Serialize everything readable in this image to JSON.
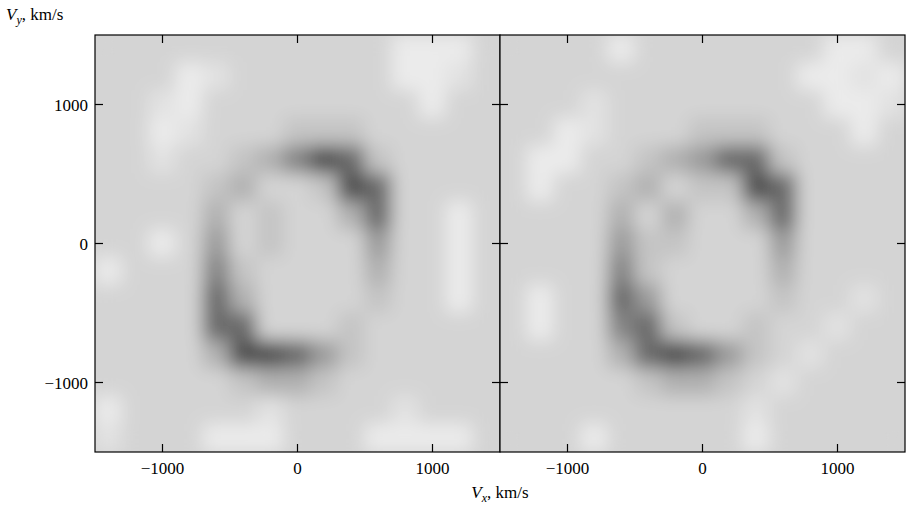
{
  "chart_data": [
    {
      "type": "heatmap",
      "xlabel": "Vx, km/s",
      "ylabel": "Vy, km/s",
      "xlim": [
        -1500,
        1500
      ],
      "ylim": [
        -1500,
        1500
      ],
      "xticks": [
        {
          "value": -1000,
          "label": "−1000"
        },
        0,
        1000
      ],
      "yticks": [
        {
          "value": -1000,
          "label": "−1000"
        },
        0,
        1000
      ],
      "zlim": [
        0,
        10
      ],
      "x": [
        -1400,
        -1200,
        -1000,
        -800,
        -600,
        -400,
        -200,
        0,
        200,
        400,
        600,
        800,
        1000,
        1200,
        1400
      ],
      "y": [
        1400,
        1200,
        1000,
        800,
        600,
        400,
        200,
        0,
        -200,
        -400,
        -600,
        -800,
        -1000,
        -1200,
        -1400
      ],
      "cells": [
        [
          3,
          3,
          3,
          3,
          3,
          3,
          3,
          3,
          3,
          3,
          3,
          1,
          1,
          1,
          3
        ],
        [
          3,
          3,
          3,
          1,
          2,
          3,
          3,
          3,
          3,
          3,
          3,
          1,
          1,
          2,
          3
        ],
        [
          3,
          3,
          2,
          1,
          3,
          3,
          3,
          3,
          3,
          3,
          3,
          3,
          1,
          3,
          3
        ],
        [
          3,
          3,
          1,
          2,
          3,
          3,
          3,
          4,
          4,
          4,
          3,
          3,
          3,
          3,
          3
        ],
        [
          3,
          3,
          2,
          3,
          3,
          4,
          5,
          7,
          9,
          8,
          4,
          3,
          3,
          3,
          3
        ],
        [
          3,
          3,
          3,
          3,
          4,
          5,
          3,
          3,
          4,
          9,
          8,
          3,
          3,
          3,
          3
        ],
        [
          3,
          3,
          3,
          3,
          5,
          3,
          4,
          3,
          3,
          5,
          8,
          3,
          3,
          1,
          3
        ],
        [
          3,
          3,
          1,
          3,
          6,
          3,
          4,
          3,
          3,
          3,
          6,
          3,
          3,
          1,
          3
        ],
        [
          1,
          3,
          3,
          3,
          7,
          4,
          3,
          3,
          3,
          3,
          5,
          3,
          3,
          1,
          3
        ],
        [
          3,
          3,
          3,
          3,
          8,
          5,
          3,
          3,
          3,
          3,
          4,
          3,
          3,
          1,
          3
        ],
        [
          3,
          3,
          3,
          3,
          8,
          8,
          3,
          3,
          3,
          4,
          3,
          3,
          3,
          3,
          3
        ],
        [
          3,
          3,
          3,
          3,
          5,
          9,
          9,
          8,
          6,
          4,
          3,
          3,
          3,
          3,
          3
        ],
        [
          3,
          3,
          3,
          3,
          3,
          4,
          5,
          5,
          4,
          3,
          3,
          3,
          3,
          3,
          3
        ],
        [
          1,
          3,
          3,
          3,
          3,
          3,
          2,
          3,
          3,
          3,
          3,
          2,
          3,
          3,
          3
        ],
        [
          2,
          3,
          3,
          3,
          1,
          1,
          1,
          3,
          3,
          3,
          1,
          1,
          1,
          1,
          3
        ]
      ]
    },
    {
      "type": "heatmap",
      "tick_labels": "x",
      "xlim": [
        -1500,
        1500
      ],
      "ylim": [
        -1500,
        1500
      ],
      "xticks": [
        {
          "value": -1000,
          "label": "−1000"
        },
        0,
        1000
      ],
      "yticks": [
        -1000,
        0,
        1000
      ],
      "zlim": [
        0,
        10
      ],
      "x": [
        -1400,
        -1200,
        -1000,
        -800,
        -600,
        -400,
        -200,
        0,
        200,
        400,
        600,
        800,
        1000,
        1200,
        1400
      ],
      "y": [
        1400,
        1200,
        1000,
        800,
        600,
        400,
        200,
        0,
        -200,
        -400,
        -600,
        -800,
        -1000,
        -1200,
        -1400
      ],
      "cells": [
        [
          3,
          3,
          3,
          3,
          1,
          3,
          3,
          3,
          3,
          3,
          3,
          3,
          1,
          1,
          3
        ],
        [
          3,
          3,
          3,
          3,
          3,
          3,
          3,
          3,
          3,
          3,
          3,
          1,
          1,
          2,
          1
        ],
        [
          3,
          3,
          3,
          2,
          3,
          3,
          3,
          3,
          3,
          3,
          3,
          3,
          1,
          1,
          2
        ],
        [
          3,
          3,
          1,
          2,
          3,
          3,
          3,
          4,
          4,
          4,
          3,
          3,
          3,
          1,
          3
        ],
        [
          3,
          1,
          1,
          3,
          3,
          4,
          5,
          6,
          8,
          8,
          4,
          3,
          3,
          3,
          3
        ],
        [
          3,
          1,
          3,
          3,
          4,
          5,
          3,
          4,
          4,
          9,
          8,
          3,
          3,
          3,
          3
        ],
        [
          3,
          3,
          3,
          3,
          5,
          3,
          5,
          3,
          3,
          5,
          8,
          3,
          3,
          3,
          3
        ],
        [
          3,
          3,
          3,
          3,
          6,
          4,
          4,
          3,
          3,
          3,
          6,
          3,
          3,
          3,
          3
        ],
        [
          3,
          3,
          3,
          3,
          7,
          4,
          3,
          3,
          3,
          3,
          5,
          3,
          3,
          3,
          3
        ],
        [
          3,
          1,
          3,
          3,
          8,
          6,
          3,
          3,
          3,
          3,
          4,
          3,
          3,
          2,
          3
        ],
        [
          3,
          1,
          3,
          3,
          7,
          8,
          4,
          3,
          3,
          4,
          3,
          3,
          2,
          3,
          3
        ],
        [
          3,
          3,
          3,
          3,
          5,
          8,
          9,
          8,
          6,
          4,
          3,
          2,
          3,
          3,
          3
        ],
        [
          3,
          3,
          3,
          3,
          3,
          4,
          5,
          5,
          4,
          3,
          2,
          3,
          3,
          3,
          3
        ],
        [
          3,
          3,
          3,
          3,
          3,
          3,
          3,
          3,
          3,
          2,
          3,
          3,
          3,
          3,
          3
        ],
        [
          3,
          3,
          3,
          1,
          3,
          3,
          3,
          3,
          3,
          1,
          3,
          3,
          3,
          3,
          3
        ]
      ]
    }
  ]
}
